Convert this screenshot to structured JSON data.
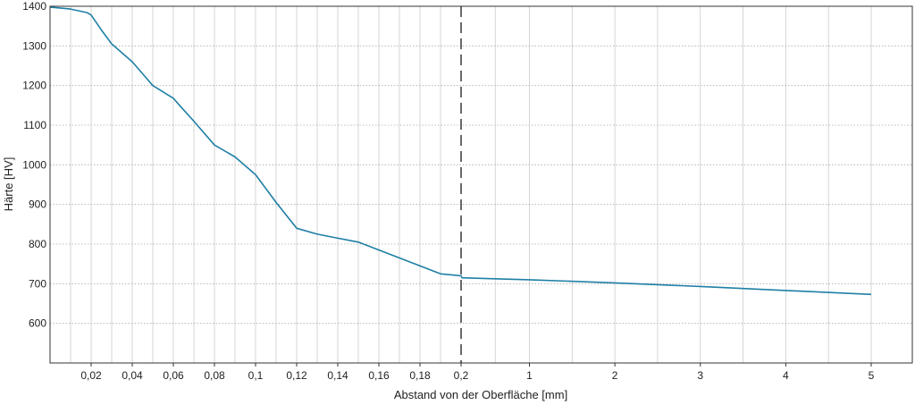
{
  "chart_data": {
    "type": "line",
    "title": "",
    "xlabel": "Abstand von der Oberfläche [mm]",
    "ylabel": "Härte [HV]",
    "ylim": [
      500,
      1400
    ],
    "grid": true,
    "x_scale": "piecewise: linear 0–0.2 mm, then linear 0.2–5 mm",
    "x_ticks": [
      {
        "value": 0.02,
        "label": "0,02"
      },
      {
        "value": 0.04,
        "label": "0,04"
      },
      {
        "value": 0.06,
        "label": "0,06"
      },
      {
        "value": 0.08,
        "label": "0,08"
      },
      {
        "value": 0.1,
        "label": "0,1"
      },
      {
        "value": 0.12,
        "label": "0,12"
      },
      {
        "value": 0.14,
        "label": "0,14"
      },
      {
        "value": 0.16,
        "label": "0,16"
      },
      {
        "value": 0.18,
        "label": "0,18"
      },
      {
        "value": 0.2,
        "label": "0,2"
      },
      {
        "value": 1,
        "label": "1"
      },
      {
        "value": 2,
        "label": "2"
      },
      {
        "value": 3,
        "label": "3"
      },
      {
        "value": 4,
        "label": "4"
      },
      {
        "value": 5,
        "label": "5"
      }
    ],
    "y_ticks": [
      {
        "value": 600,
        "label": "600"
      },
      {
        "value": 700,
        "label": "700"
      },
      {
        "value": 800,
        "label": "800"
      },
      {
        "value": 900,
        "label": "900"
      },
      {
        "value": 1000,
        "label": "1000"
      },
      {
        "value": 1100,
        "label": "1100"
      },
      {
        "value": 1200,
        "label": "1200"
      },
      {
        "value": 1300,
        "label": "1300"
      },
      {
        "value": 1400,
        "label": "1400"
      }
    ],
    "vline_at": 0.2,
    "series": [
      {
        "color": "#1f7fa6",
        "x": [
          0,
          0.01,
          0.018,
          0.02,
          0.025,
          0.03,
          0.04,
          0.045,
          0.05,
          0.06,
          0.063,
          0.07,
          0.08,
          0.09,
          0.1,
          0.11,
          0.12,
          0.13,
          0.14,
          0.15,
          0.16,
          0.17,
          0.18,
          0.19,
          0.2,
          0.21,
          0.5,
          1,
          2,
          3,
          4,
          5
        ],
        "y": [
          1398,
          1393,
          1384,
          1378,
          1340,
          1305,
          1260,
          1230,
          1200,
          1168,
          1150,
          1110,
          1050,
          1020,
          975,
          905,
          840,
          825,
          815,
          805,
          785,
          765,
          745,
          725,
          720,
          715,
          713,
          710,
          702,
          693,
          683,
          673
        ]
      }
    ],
    "colors": {
      "line": "#1f7fa6",
      "grid": "#cccccc",
      "axis": "#333333",
      "vline": "#444444"
    }
  }
}
